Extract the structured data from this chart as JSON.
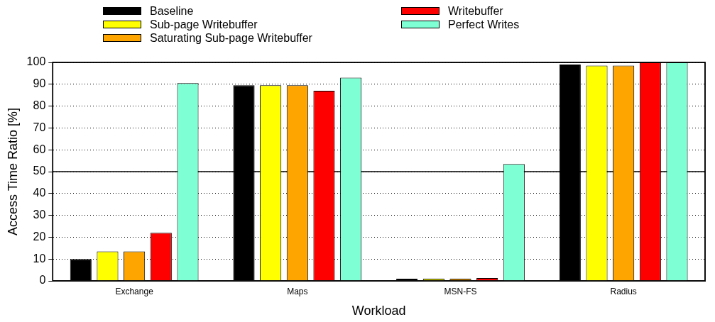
{
  "chart_data": {
    "type": "bar",
    "xlabel": "Workload",
    "ylabel": "Access Time Ratio [%]",
    "categories": [
      "Exchange",
      "Maps",
      "MSN-FS",
      "Radius"
    ],
    "series": [
      {
        "name": "Baseline",
        "color": "#000000",
        "values": [
          10,
          89.5,
          1,
          99
        ]
      },
      {
        "name": "Sub-page Writebuffer",
        "color": "#ffff00",
        "values": [
          13.5,
          89.5,
          1,
          98.5
        ]
      },
      {
        "name": "Saturating Sub-page Writebuffer",
        "color": "#ffa500",
        "values": [
          13.5,
          89.5,
          1,
          98.5
        ]
      },
      {
        "name": "Writebuffer",
        "color": "#ff0000",
        "values": [
          22,
          87,
          1.3,
          100
        ]
      },
      {
        "name": "Perfect Writes",
        "color": "#7fffd4",
        "values": [
          90.5,
          93,
          53.5,
          100
        ]
      }
    ],
    "ylim": [
      0,
      100
    ],
    "yticks": [
      0,
      10,
      20,
      30,
      40,
      50,
      60,
      70,
      80,
      90,
      100
    ],
    "grid": "y",
    "legend": "top",
    "ref_lines": [
      {
        "axis": "y",
        "value": 50,
        "color": "#000000"
      }
    ]
  }
}
